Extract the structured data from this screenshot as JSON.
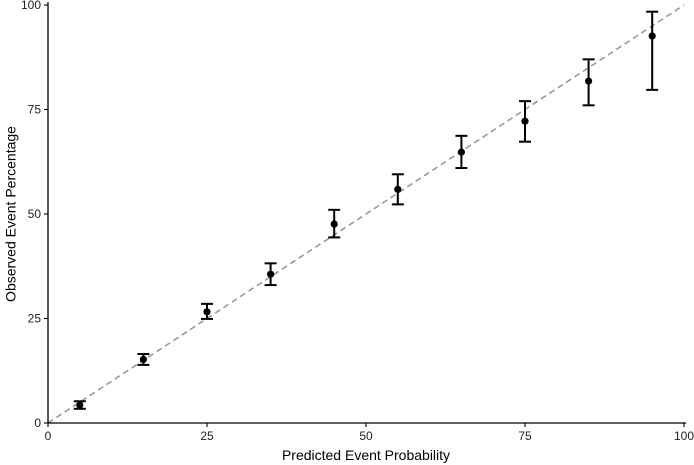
{
  "chart_data": {
    "type": "scatter",
    "title": "",
    "xlabel": "Predicted Event Probability",
    "ylabel": "Observed Event Percentage",
    "xlim": [
      0,
      100
    ],
    "ylim": [
      0,
      100
    ],
    "xticks": [
      0,
      25,
      50,
      75,
      100
    ],
    "yticks": [
      0,
      25,
      50,
      75,
      100
    ],
    "xtick_labels": [
      "0",
      "25",
      "50",
      "75",
      "100"
    ],
    "ytick_labels": [
      "0",
      "25",
      "50",
      "75",
      "100"
    ],
    "grid": false,
    "reference_line": {
      "x": [
        0,
        100
      ],
      "y": [
        0,
        100
      ],
      "style": "dashed",
      "color": "#999999"
    },
    "series": [
      {
        "x": [
          5,
          15,
          25,
          35,
          45,
          55,
          65,
          75,
          85,
          95
        ],
        "y": [
          4.3,
          15.2,
          26.6,
          35.6,
          47.6,
          55.9,
          64.8,
          72.2,
          81.8,
          92.6
        ],
        "y_low": [
          3.4,
          13.9,
          24.9,
          33.0,
          44.4,
          52.3,
          61.0,
          67.3,
          76.0,
          79.7
        ],
        "y_high": [
          5.2,
          16.5,
          28.5,
          38.2,
          51.0,
          59.5,
          68.7,
          77.0,
          87.0,
          98.4
        ]
      }
    ]
  }
}
